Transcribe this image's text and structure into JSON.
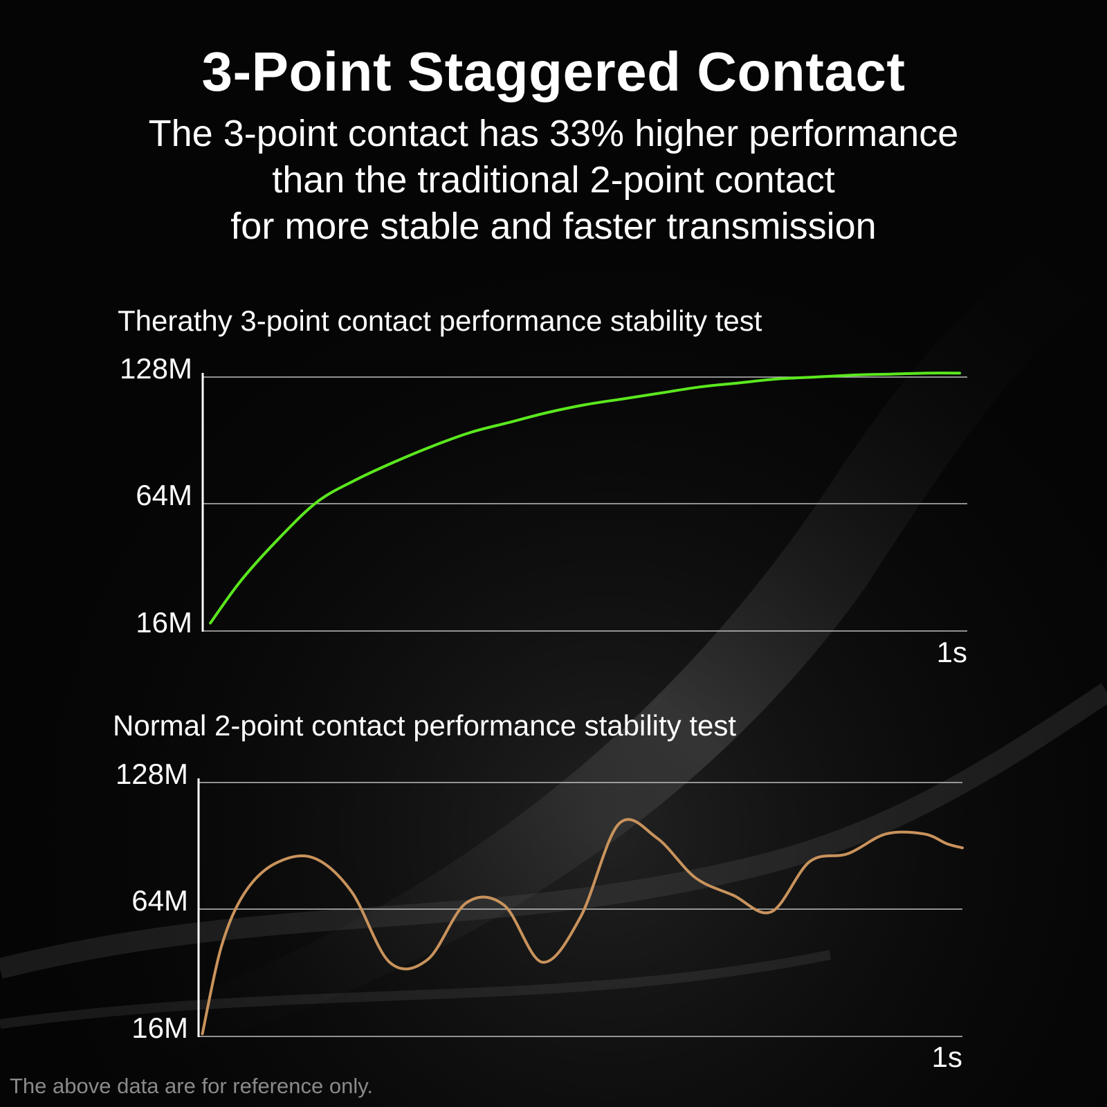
{
  "header": {
    "title": "3-Point Staggered Contact",
    "subtitle_lines": [
      "The 3-point contact has 33% higher performance",
      "than the traditional 2-point contact",
      "for more stable and faster transmission"
    ]
  },
  "footnote": "The above data are for reference only.",
  "colors": {
    "background": "#050505",
    "three_point_line": "#5be81e",
    "two_point_line": "#c9935c",
    "grid": "#bfbfbf"
  },
  "chart_data": [
    {
      "type": "line",
      "title": "Therathy 3-point contact performance stability test",
      "yticks": [
        "128M",
        "64M",
        "16M"
      ],
      "xtick_end": "1s",
      "xlim": [
        0,
        1
      ],
      "ylim": [
        16,
        128
      ],
      "grid": true,
      "series": [
        {
          "x": [
            0.01,
            0.05,
            0.1,
            0.15,
            0.2,
            0.25,
            0.3,
            0.35,
            0.4,
            0.45,
            0.5,
            0.55,
            0.6,
            0.65,
            0.7,
            0.75,
            0.8,
            0.85,
            0.9,
            0.95,
            0.99
          ],
          "y": [
            19,
            35,
            51,
            65,
            76,
            85,
            93,
            100,
            105,
            110,
            114,
            117,
            120,
            123,
            125,
            127,
            128,
            129,
            129.5,
            130,
            130
          ]
        }
      ]
    },
    {
      "type": "line",
      "title": "Normal 2-point contact performance stability test",
      "yticks": [
        "128M",
        "64M",
        "16M"
      ],
      "xtick_end": "1s",
      "xlim": [
        0,
        1
      ],
      "ylim": [
        16,
        128
      ],
      "grid": true,
      "series": [
        {
          "x": [
            0.005,
            0.03,
            0.06,
            0.1,
            0.15,
            0.2,
            0.25,
            0.3,
            0.35,
            0.4,
            0.45,
            0.5,
            0.55,
            0.6,
            0.65,
            0.7,
            0.75,
            0.8,
            0.85,
            0.9,
            0.95,
            0.98,
            1.0
          ],
          "y": [
            17,
            50,
            72,
            87,
            90,
            73,
            44,
            45,
            67,
            66,
            44,
            61,
            107,
            100,
            80,
            71,
            63,
            88,
            92,
            102,
            102,
            97,
            95
          ]
        }
      ]
    }
  ]
}
